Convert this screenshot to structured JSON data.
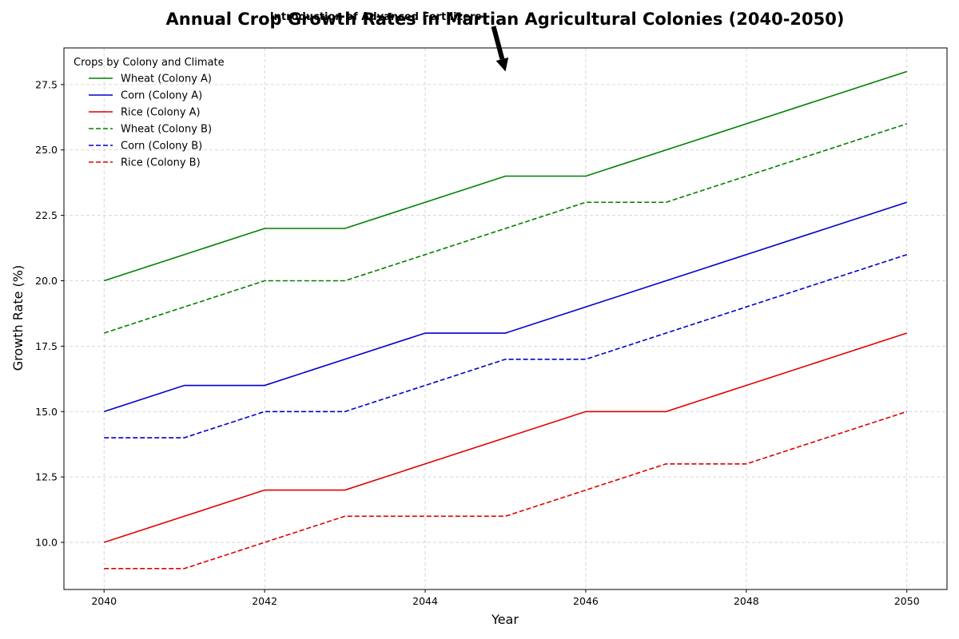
{
  "chart_data": {
    "type": "line",
    "title": "Annual Crop Growth Rates in Martian Agricultural Colonies (2040-2050)",
    "xlabel": "Year",
    "ylabel": "Growth Rate (%)",
    "x": [
      2040,
      2041,
      2042,
      2043,
      2044,
      2045,
      2046,
      2047,
      2048,
      2049,
      2050
    ],
    "xlim": [
      2039.5,
      2050.5
    ],
    "ylim": [
      8.2,
      28.9
    ],
    "xticks": [
      2040,
      2042,
      2044,
      2046,
      2048,
      2050
    ],
    "xtick_labels": [
      "2040",
      "2042",
      "2044",
      "2046",
      "2048",
      "2050"
    ],
    "yticks": [
      10.0,
      12.5,
      15.0,
      17.5,
      20.0,
      22.5,
      25.0,
      27.5
    ],
    "ytick_labels": [
      "10.0",
      "12.5",
      "15.0",
      "17.5",
      "20.0",
      "22.5",
      "25.0",
      "27.5"
    ],
    "grid": true,
    "legend": {
      "title": "Crops by Colony and Climate",
      "placement": "top-left"
    },
    "series": [
      {
        "name": "Wheat (Colony A)",
        "color": "#008000",
        "style": "solid",
        "values": [
          20,
          21,
          22,
          22,
          23,
          24,
          24,
          25,
          26,
          27,
          28
        ]
      },
      {
        "name": "Corn (Colony A)",
        "color": "#0000cc",
        "style": "solid",
        "values": [
          15,
          16,
          16,
          17,
          18,
          18,
          19,
          20,
          21,
          22,
          23
        ]
      },
      {
        "name": "Rice (Colony A)",
        "color": "#e00000",
        "style": "solid",
        "values": [
          10,
          11,
          12,
          12,
          13,
          14,
          15,
          15,
          16,
          17,
          18
        ]
      },
      {
        "name": "Wheat (Colony B)",
        "color": "#008000",
        "style": "dashed",
        "values": [
          18,
          19,
          20,
          20,
          21,
          22,
          23,
          23,
          24,
          25,
          26
        ]
      },
      {
        "name": "Corn (Colony B)",
        "color": "#0000cc",
        "style": "dashed",
        "values": [
          14,
          14,
          15,
          15,
          16,
          17,
          17,
          18,
          19,
          20,
          21
        ]
      },
      {
        "name": "Rice (Colony B)",
        "color": "#e00000",
        "style": "dashed",
        "values": [
          9,
          9,
          10,
          11,
          11,
          11,
          12,
          13,
          13,
          14,
          15
        ]
      }
    ],
    "annotations": [
      {
        "text": "Introduction of Advanced Fertilizers",
        "x": 2045,
        "y": 28
      }
    ]
  }
}
